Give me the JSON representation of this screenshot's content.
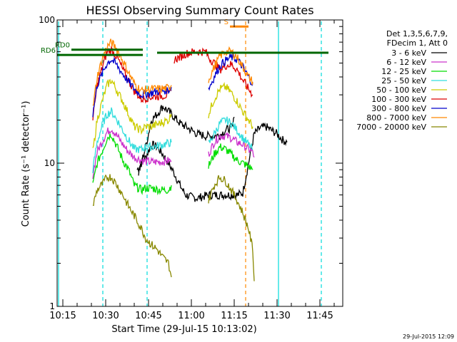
{
  "chart_data": {
    "type": "line",
    "title": "HESSI Observing Summary Count Rates",
    "xlabel": "Start Time (29-Jul-15 10:13:02)",
    "ylabel": "Count Rate (s⁻¹ detector⁻¹)",
    "yscale": "log",
    "ylim": [
      1,
      100
    ],
    "xlim_minutes_after_10_13": [
      0,
      100
    ],
    "y_tick_labels": [
      "1",
      "10",
      "100"
    ],
    "x_ticks": [
      {
        "label": "10:15",
        "t": 2
      },
      {
        "label": "10:30",
        "t": 17
      },
      {
        "label": "10:45",
        "t": 32
      },
      {
        "label": "11:00",
        "t": 47
      },
      {
        "label": "11:15",
        "t": 62
      },
      {
        "label": "11:30",
        "t": 77
      },
      {
        "label": "11:45",
        "t": 92
      }
    ],
    "legend": {
      "header": [
        "Det 1,3,5,6,7,9,",
        "FDecim 1, Att 0"
      ],
      "position": "right"
    },
    "series": [
      {
        "name": "3 - 6 keV",
        "color": "#000000",
        "segments": [
          [
            [
              28,
              9
            ],
            [
              31,
              11
            ],
            [
              33,
              13.5
            ],
            [
              35,
              13
            ],
            [
              37,
              11.5
            ],
            [
              39,
              10
            ],
            [
              41,
              8.5
            ],
            [
              43,
              7
            ],
            [
              45,
              6
            ],
            [
              47,
              5.8
            ],
            [
              49,
              5.7
            ],
            [
              50.5,
              5.8
            ],
            [
              53,
              6
            ],
            [
              55,
              6
            ],
            [
              59,
              6
            ],
            [
              63,
              6
            ],
            [
              65,
              6.2
            ],
            [
              69,
              16
            ],
            [
              71,
              17.5
            ],
            [
              73,
              18
            ],
            [
              75,
              17
            ],
            [
              77,
              16
            ],
            [
              79,
              14.5
            ],
            [
              80.5,
              14
            ]
          ],
          [
            [
              28.5,
              8.5
            ],
            [
              31,
              13
            ],
            [
              33,
              20
            ],
            [
              35,
              22
            ],
            [
              37,
              25
            ],
            [
              39,
              23
            ],
            [
              41,
              21
            ],
            [
              43,
              19
            ],
            [
              45,
              18
            ],
            [
              47,
              17
            ],
            [
              49,
              16
            ],
            [
              52,
              15.5
            ],
            [
              55,
              15.5
            ],
            [
              57,
              15.7
            ],
            [
              59,
              17
            ],
            [
              61.5,
              18
            ],
            [
              62,
              21
            ]
          ]
        ]
      },
      {
        "name": "6 - 12 keV",
        "color": "#cc33cc",
        "segments": [
          [
            [
              12.5,
              8.3
            ],
            [
              14,
              12
            ],
            [
              16,
              14.5
            ],
            [
              17.5,
              16.5
            ],
            [
              19,
              17.5
            ],
            [
              21,
              15.5
            ],
            [
              23,
              13.5
            ],
            [
              25,
              12
            ],
            [
              27,
              11
            ],
            [
              29.5,
              10.5
            ],
            [
              31,
              10.3
            ],
            [
              33,
              10.2
            ],
            [
              36,
              10.2
            ],
            [
              39,
              10.4
            ],
            [
              40,
              10.4
            ]
          ],
          [
            [
              53,
              11.5
            ],
            [
              55,
              14
            ],
            [
              57,
              15.5
            ],
            [
              59,
              15.5
            ],
            [
              61,
              15
            ],
            [
              63,
              14
            ],
            [
              65,
              13.5
            ],
            [
              67,
              12.5
            ],
            [
              68.5,
              12
            ],
            [
              69,
              11
            ]
          ]
        ]
      },
      {
        "name": "12 - 25 keV",
        "color": "#00dd00",
        "segments": [
          [
            [
              12.5,
              7
            ],
            [
              14,
              10
            ],
            [
              16,
              12.5
            ],
            [
              17.5,
              15
            ],
            [
              19,
              16
            ],
            [
              21,
              13
            ],
            [
              23,
              10.5
            ],
            [
              25,
              9
            ],
            [
              27,
              7
            ],
            [
              29.5,
              6.5
            ],
            [
              31,
              6.7
            ],
            [
              33,
              6.7
            ],
            [
              36,
              6.5
            ],
            [
              39,
              6.5
            ],
            [
              40,
              7
            ]
          ],
          [
            [
              53,
              9.5
            ],
            [
              55,
              11.5
            ],
            [
              57,
              13
            ],
            [
              59,
              12.5
            ],
            [
              61,
              11.5
            ],
            [
              63,
              10.5
            ],
            [
              65,
              10
            ],
            [
              67,
              9.5
            ],
            [
              68.5,
              9
            ]
          ]
        ]
      },
      {
        "name": "25 - 50 keV",
        "color": "#33dddd",
        "segments": [
          [
            [
              12.5,
              9
            ],
            [
              14,
              14
            ],
            [
              16,
              19
            ],
            [
              17.5,
              22
            ],
            [
              19,
              23
            ],
            [
              21,
              20
            ],
            [
              23,
              17
            ],
            [
              25,
              14.5
            ],
            [
              27,
              12.5
            ],
            [
              29.5,
              12.5
            ],
            [
              31,
              13
            ],
            [
              33,
              13
            ],
            [
              36,
              13.3
            ],
            [
              39,
              13.8
            ],
            [
              40,
              14
            ]
          ],
          [
            [
              53,
              13.5
            ],
            [
              55,
              16
            ],
            [
              57,
              19
            ],
            [
              59,
              20
            ],
            [
              61,
              19
            ],
            [
              63,
              17
            ],
            [
              65,
              15
            ],
            [
              67,
              13.5
            ],
            [
              68.5,
              12.5
            ]
          ]
        ]
      },
      {
        "name": "50 - 100 keV",
        "color": "#cccc00",
        "segments": [
          [
            [
              12.5,
              12
            ],
            [
              14,
              20
            ],
            [
              16,
              28
            ],
            [
              17.5,
              35
            ],
            [
              19,
              38
            ],
            [
              21,
              32
            ],
            [
              23,
              27
            ],
            [
              25,
              22
            ],
            [
              27,
              18
            ],
            [
              29.5,
              17
            ],
            [
              31,
              18
            ],
            [
              33,
              18
            ],
            [
              36,
              19
            ],
            [
              39,
              20
            ],
            [
              40,
              22
            ]
          ],
          [
            [
              53,
              22
            ],
            [
              55,
              28
            ],
            [
              57,
              33
            ],
            [
              59,
              34
            ],
            [
              61,
              31
            ],
            [
              63,
              27
            ],
            [
              65,
              23
            ],
            [
              67,
              20
            ],
            [
              68.5,
              18
            ]
          ]
        ]
      },
      {
        "name": "100 - 300 keV",
        "color": "#dd0000",
        "segments": [
          [
            [
              12.5,
              20
            ],
            [
              14,
              35
            ],
            [
              16,
              48
            ],
            [
              17.5,
              60
            ],
            [
              19,
              62
            ],
            [
              21,
              55
            ],
            [
              23,
              45
            ],
            [
              25,
              38
            ],
            [
              27,
              32
            ],
            [
              29.5,
              28
            ],
            [
              31,
              28.5
            ],
            [
              33,
              29
            ],
            [
              36,
              29.5
            ],
            [
              39,
              30
            ],
            [
              40,
              32
            ]
          ],
          [
            [
              41,
              53
            ],
            [
              43,
              55
            ],
            [
              45,
              58
            ],
            [
              48,
              60
            ],
            [
              52,
              60
            ],
            [
              53,
              55
            ],
            [
              55,
              50
            ],
            [
              57,
              45
            ],
            [
              59,
              48
            ],
            [
              61,
              49
            ],
            [
              63,
              45
            ],
            [
              65,
              38
            ],
            [
              67,
              33
            ],
            [
              68.5,
              30
            ]
          ]
        ]
      },
      {
        "name": "300 - 800 keV",
        "color": "#0000cc",
        "segments": [
          [
            [
              12.5,
              22
            ],
            [
              14,
              35
            ],
            [
              16,
              43
            ],
            [
              17.5,
              50
            ],
            [
              19,
              53
            ],
            [
              21,
              48
            ],
            [
              23,
              42
            ],
            [
              25,
              37
            ],
            [
              27,
              33
            ],
            [
              29.5,
              30
            ],
            [
              31,
              30.5
            ],
            [
              33,
              31
            ],
            [
              36,
              32
            ],
            [
              39,
              32.5
            ],
            [
              40,
              34
            ]
          ],
          [
            [
              53,
              33
            ],
            [
              55,
              40
            ],
            [
              57,
              48
            ],
            [
              59,
              52
            ],
            [
              61,
              55
            ],
            [
              63,
              53
            ],
            [
              65,
              47
            ],
            [
              67,
              40
            ],
            [
              68.5,
              36
            ]
          ]
        ]
      },
      {
        "name": "800 - 7000 keV",
        "color": "#ff8800",
        "segments": [
          [
            [
              12.5,
              24
            ],
            [
              14,
              40
            ],
            [
              16,
              55
            ],
            [
              17.5,
              65
            ],
            [
              19,
              70
            ],
            [
              21,
              62
            ],
            [
              23,
              52
            ],
            [
              25,
              43
            ],
            [
              27,
              36
            ],
            [
              29.5,
              32
            ],
            [
              31,
              32.5
            ],
            [
              33,
              33
            ],
            [
              36,
              33
            ],
            [
              39,
              33.5
            ],
            [
              40,
              35
            ]
          ],
          [
            [
              53,
              38
            ],
            [
              55,
              47
            ],
            [
              57,
              56
            ],
            [
              59,
              60
            ],
            [
              61,
              60
            ],
            [
              63,
              55
            ],
            [
              65,
              47
            ],
            [
              67,
              40
            ],
            [
              68.5,
              37
            ]
          ]
        ]
      },
      {
        "name": "7000 - 20000 keV",
        "color": "#888800",
        "segments": [
          [
            [
              12.5,
              5
            ],
            [
              14,
              6.5
            ],
            [
              16,
              7.2
            ],
            [
              17.5,
              8
            ],
            [
              19,
              8
            ],
            [
              21,
              7
            ],
            [
              23,
              6
            ],
            [
              25,
              5
            ],
            [
              27,
              4.3
            ],
            [
              29.5,
              3.5
            ],
            [
              31,
              3
            ],
            [
              33,
              2.7
            ],
            [
              35,
              2.5
            ],
            [
              37,
              2.2
            ],
            [
              39,
              2
            ],
            [
              40,
              1.6
            ]
          ],
          [
            [
              53,
              5.5
            ],
            [
              55,
              7
            ],
            [
              57,
              8
            ],
            [
              59,
              7.5
            ],
            [
              61,
              6.5
            ],
            [
              63,
              5.5
            ],
            [
              65,
              4.5
            ],
            [
              67,
              3.5
            ],
            [
              68.5,
              2.5
            ],
            [
              69,
              1.5
            ]
          ]
        ]
      }
    ],
    "annotations": [
      {
        "label": "RD0",
        "type": "segment",
        "color": "#006600",
        "t": [
          5,
          30
        ],
        "y": 62
      },
      {
        "label": "RD6",
        "type": "segment",
        "color": "#006600",
        "t": [
          0,
          30
        ],
        "y": 57
      },
      {
        "label": "S",
        "type": "segment",
        "color": "#ff8800",
        "t": [
          60.5,
          67
        ],
        "y": 90
      },
      {
        "label": "",
        "type": "segment",
        "color": "#006600",
        "t": [
          35,
          95
        ],
        "y": 59
      }
    ],
    "vertical_lines": [
      {
        "t": 0.5,
        "color": "#00dddd",
        "style": "solid"
      },
      {
        "t": 16,
        "color": "#00dddd",
        "style": "dashed"
      },
      {
        "t": 31.5,
        "color": "#00dddd",
        "style": "dashed"
      },
      {
        "t": 66,
        "color": "#ff8800",
        "style": "dashed"
      },
      {
        "t": 77.5,
        "color": "#00dddd",
        "style": "solid"
      },
      {
        "t": 92.5,
        "color": "#00dddd",
        "style": "dashed"
      }
    ]
  },
  "footer": {
    "timestamp": "29-Jul-2015 12:09"
  }
}
